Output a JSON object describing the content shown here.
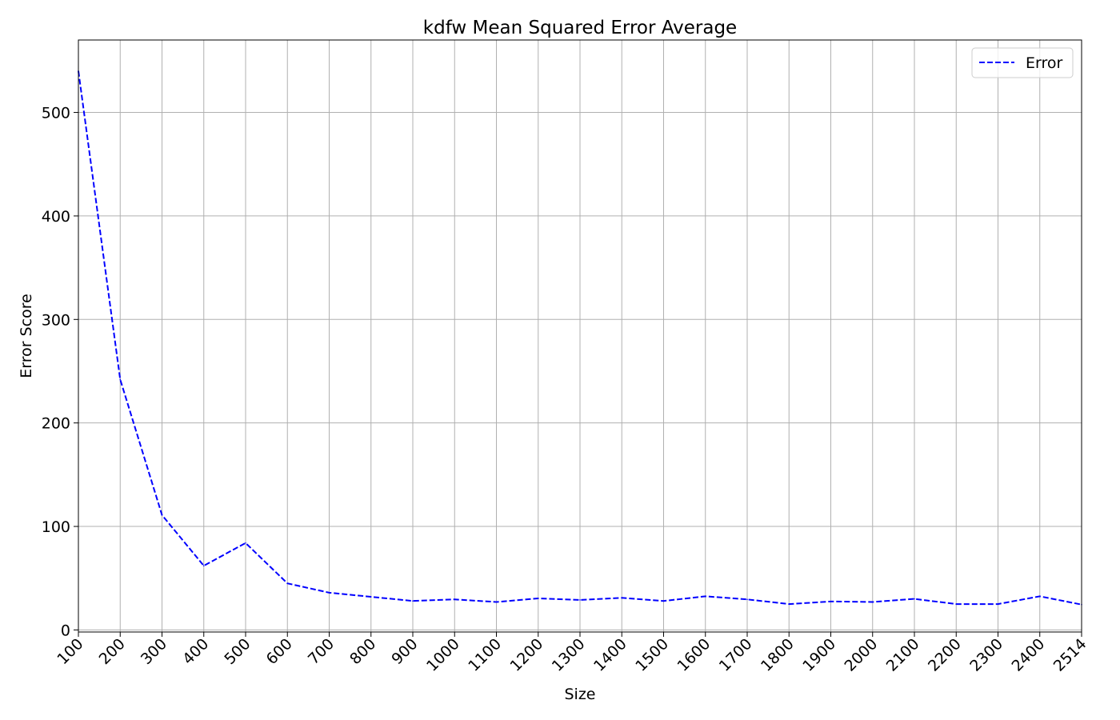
{
  "chart_data": {
    "type": "line",
    "title": "kdfw Mean Squared Error Average",
    "xlabel": "Size",
    "ylabel": "Error Score",
    "x_tick_labels": [
      "100",
      "200",
      "300",
      "400",
      "500",
      "600",
      "700",
      "800",
      "900",
      "1000",
      "1100",
      "1200",
      "1300",
      "1400",
      "1500",
      "1600",
      "1700",
      "1800",
      "1900",
      "2000",
      "2100",
      "2200",
      "2300",
      "2400",
      "2514"
    ],
    "y_ticks": [
      0,
      100,
      200,
      300,
      400,
      500
    ],
    "ylim": [
      -2,
      570
    ],
    "grid": true,
    "legend_position": "top-right",
    "series": [
      {
        "name": "Error",
        "color": "#0000ff",
        "line_style": "dashed",
        "values": [
          540,
          242,
          111,
          62,
          84,
          45,
          36,
          32,
          28,
          29.5,
          27,
          30.5,
          29,
          31,
          28,
          32.5,
          29.5,
          25,
          27.5,
          27,
          30,
          25,
          25,
          32.5,
          24.5
        ]
      }
    ]
  }
}
